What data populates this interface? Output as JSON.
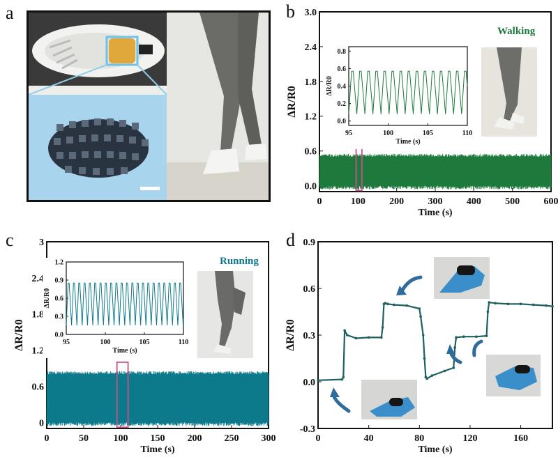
{
  "panels": {
    "a": {
      "letter": "a"
    },
    "b": {
      "letter": "b",
      "label": "Walking"
    },
    "c": {
      "letter": "c",
      "label": "Running"
    },
    "d": {
      "letter": "d"
    }
  },
  "colors": {
    "walking": "#1e7a3c",
    "running": "#0d7a8c",
    "panel_d": "#1f5f5f",
    "highlight": "#c8508c"
  },
  "icons": [
    "shoe-sensor-photo",
    "lattice-sensor-photo",
    "leg-walking-photo",
    "finger-bend-photo"
  ],
  "chart_data": [
    {
      "id": "b-main",
      "type": "line",
      "xlabel": "Time (s)",
      "ylabel": "ΔR/R0",
      "xlim": [
        0,
        600
      ],
      "ylim": [
        -0.1,
        3.0
      ],
      "xticks": [
        "0",
        "100",
        "200",
        "300",
        "400",
        "500",
        "600"
      ],
      "yticks": [
        "0.0",
        "0.6",
        "1.2",
        "1.8",
        "2.4",
        "3.0"
      ],
      "xtick_values": [
        0,
        100,
        200,
        300,
        400,
        500,
        600
      ],
      "ytick_values": [
        0.0,
        0.6,
        1.2,
        1.8,
        2.4,
        3.0
      ],
      "signal": {
        "baseline": 0.0,
        "peak": 0.55
      },
      "highlight_window": [
        95,
        110
      ]
    },
    {
      "id": "b-inset",
      "type": "line",
      "xlabel": "Time (s)",
      "ylabel": "ΔR/R0",
      "xlim": [
        95,
        110
      ],
      "ylim": [
        -0.05,
        0.85
      ],
      "xticks": [
        "95",
        "100",
        "105",
        "110"
      ],
      "yticks": [
        "0.0",
        "0.2",
        "0.4",
        "0.6",
        "0.8"
      ],
      "xtick_values": [
        95,
        100,
        105,
        110
      ],
      "ytick_values": [
        0.0,
        0.2,
        0.4,
        0.6,
        0.8
      ],
      "signal": {
        "baseline": 0.08,
        "peak": 0.57,
        "period": 1.02
      }
    },
    {
      "id": "c-main",
      "type": "line",
      "xlabel": "Time (s)",
      "ylabel": "ΔR/R0",
      "xlim": [
        0,
        300
      ],
      "ylim": [
        -0.1,
        3.0
      ],
      "xticks": [
        "0",
        "50",
        "100",
        "150",
        "200",
        "250",
        "300"
      ],
      "yticks": [
        "0",
        "0.6",
        "1.2",
        "1.8",
        "2.4",
        "3"
      ],
      "xtick_values": [
        0,
        50,
        100,
        150,
        200,
        250,
        300
      ],
      "ytick_values": [
        0.0,
        0.6,
        1.2,
        1.8,
        2.4,
        3.0
      ],
      "signal": {
        "baseline": 0.0,
        "peak": 0.85
      },
      "highlight_window": [
        95,
        110
      ]
    },
    {
      "id": "c-inset",
      "type": "line",
      "xlabel": "Time (s)",
      "ylabel": "ΔR/R0",
      "xlim": [
        95,
        110
      ],
      "ylim": [
        0.0,
        1.2
      ],
      "xticks": [
        "95",
        "100",
        "105",
        "110"
      ],
      "yticks": [
        "0.0",
        "0.3",
        "0.6",
        "0.9",
        "1.2"
      ],
      "xtick_values": [
        95,
        100,
        105,
        110
      ],
      "ytick_values": [
        0.0,
        0.3,
        0.6,
        0.9,
        1.2
      ],
      "signal": {
        "baseline": 0.15,
        "peak": 0.85,
        "period": 0.68
      }
    },
    {
      "id": "d-main",
      "type": "line",
      "xlabel": "Time (s)",
      "ylabel": "ΔR/R0",
      "xlim": [
        0,
        185
      ],
      "ylim": [
        -0.3,
        0.9
      ],
      "xticks": [
        "0",
        "40",
        "80",
        "120",
        "160"
      ],
      "yticks": [
        "-0.3",
        "0.0",
        "0.3",
        "0.6",
        "0.9"
      ],
      "xtick_values": [
        0,
        40,
        80,
        120,
        160
      ],
      "ytick_values": [
        -0.3,
        0.0,
        0.3,
        0.6,
        0.9
      ],
      "x": [
        0,
        19,
        20,
        21,
        23,
        30,
        40,
        50,
        51,
        52,
        53,
        55,
        60,
        70,
        80,
        81,
        83,
        84,
        85,
        86,
        90,
        100,
        107,
        108,
        109,
        115,
        125,
        133,
        134,
        135,
        140,
        150,
        160,
        170,
        180,
        185
      ],
      "y": [
        0.01,
        0.015,
        0.03,
        0.33,
        0.3,
        0.28,
        0.285,
        0.285,
        0.35,
        0.5,
        0.505,
        0.5,
        0.495,
        0.49,
        0.47,
        0.42,
        0.3,
        0.15,
        0.03,
        0.02,
        0.04,
        0.07,
        0.09,
        0.22,
        0.285,
        0.29,
        0.29,
        0.295,
        0.45,
        0.51,
        0.505,
        0.5,
        0.5,
        0.495,
        0.49,
        0.485
      ]
    }
  ]
}
